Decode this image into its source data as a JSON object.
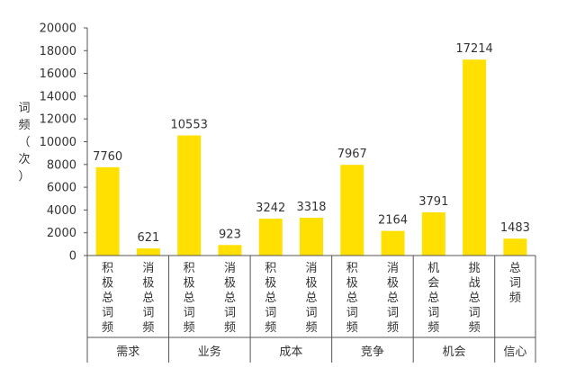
{
  "chart_data": {
    "type": "bar",
    "ylabel": "词频（次）",
    "ylim": [
      0,
      20000
    ],
    "yticks": [
      0,
      2000,
      4000,
      6000,
      8000,
      10000,
      12000,
      14000,
      16000,
      18000,
      20000
    ],
    "grid": false,
    "groups": [
      {
        "name": "需求",
        "bars": [
          {
            "label": "积极总词频",
            "value": 7760
          },
          {
            "label": "消极总词频",
            "value": 621
          }
        ]
      },
      {
        "name": "业务",
        "bars": [
          {
            "label": "积极总词频",
            "value": 10553
          },
          {
            "label": "消极总词频",
            "value": 923
          }
        ]
      },
      {
        "name": "成本",
        "bars": [
          {
            "label": "积极总词频",
            "value": 3242
          },
          {
            "label": "消极总词频",
            "value": 3318
          }
        ]
      },
      {
        "name": "竞争",
        "bars": [
          {
            "label": "积极总词频",
            "value": 7967
          },
          {
            "label": "消极总词频",
            "value": 2164
          }
        ]
      },
      {
        "name": "机会",
        "bars": [
          {
            "label": "机会总词频",
            "value": 3791
          },
          {
            "label": "挑战总词频",
            "value": 17214
          }
        ]
      },
      {
        "name": "信心",
        "bars": [
          {
            "label": "总词频",
            "value": 1483
          }
        ]
      }
    ],
    "colors": {
      "bar": "#FFE000",
      "axis": "#555555",
      "text": "#333333"
    }
  }
}
